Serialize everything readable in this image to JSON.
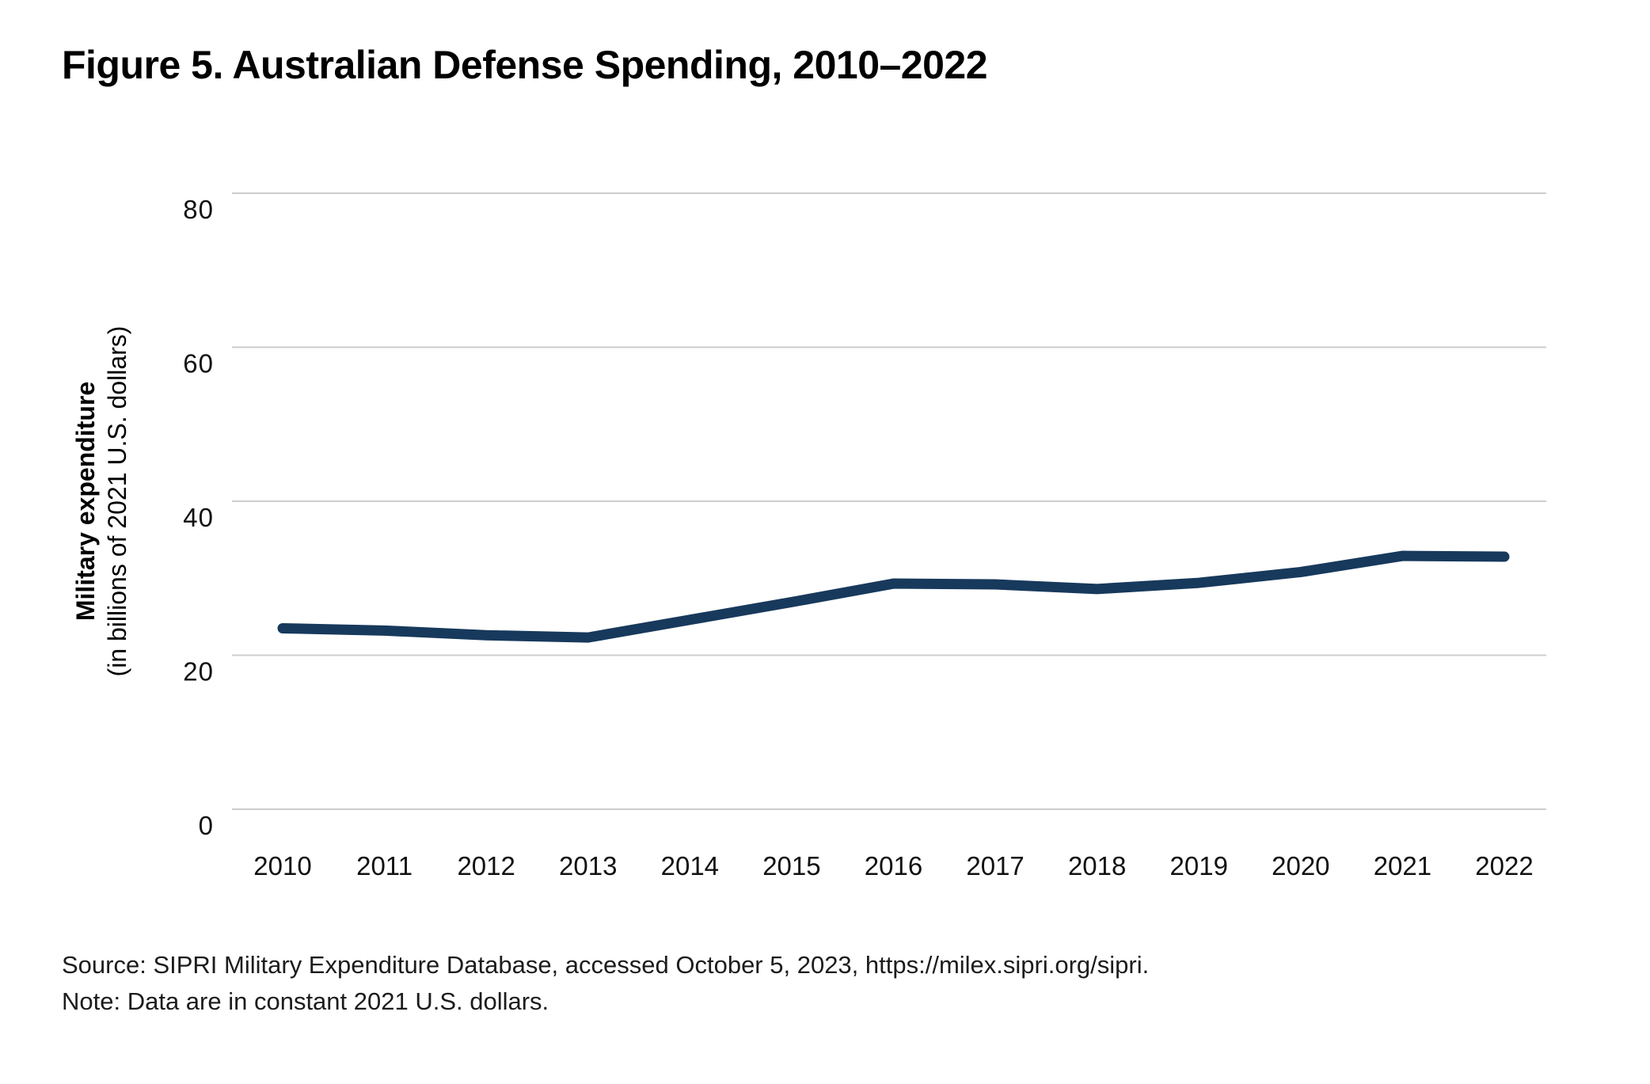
{
  "title": "Figure 5. Australian Defense Spending, 2010–2022",
  "chart_data": {
    "type": "line",
    "title": "Figure 5. Australian Defense Spending, 2010–2022",
    "x": [
      2010,
      2011,
      2012,
      2013,
      2014,
      2015,
      2016,
      2017,
      2018,
      2019,
      2020,
      2021,
      2022
    ],
    "series": [
      {
        "name": "Military expenditure",
        "values": [
          23.5,
          23.2,
          22.6,
          22.3,
          24.6,
          26.9,
          29.3,
          29.2,
          28.6,
          29.4,
          30.8,
          32.9,
          32.8
        ]
      }
    ],
    "xlabel": "",
    "ylabel": "Military expenditure",
    "ylabel_sub": "(in billions of 2021 U.S. dollars)",
    "ylim": [
      0,
      80
    ],
    "yticks": [
      0,
      20,
      40,
      60,
      80
    ],
    "grid": "horizontal-only",
    "legend": "none",
    "line_color": "#17395c",
    "gridline_color": "#cdcdcd",
    "tick_label_color": "#111111"
  },
  "source": "Source: SIPRI Military Expenditure Database, accessed October 5, 2023, https://milex.sipri.org/sipri.",
  "note": "Note: Data are in constant 2021 U.S. dollars."
}
